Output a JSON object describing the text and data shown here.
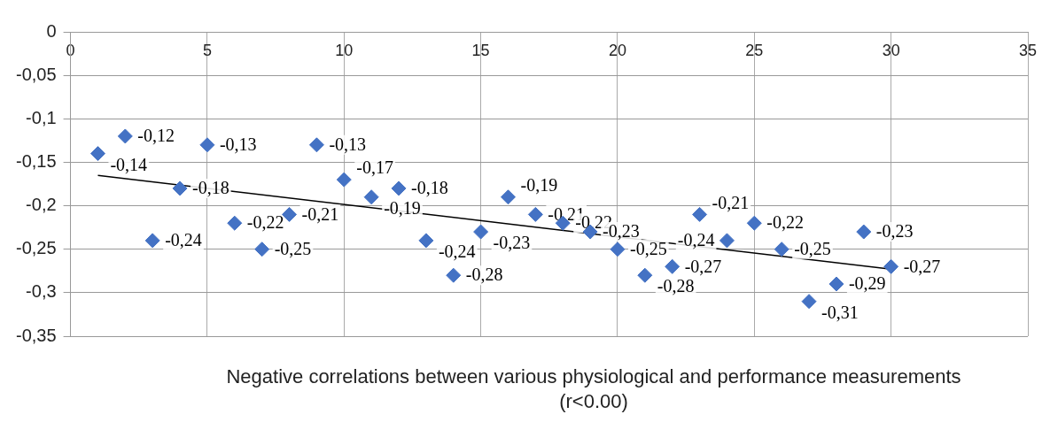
{
  "chart_data": {
    "type": "scatter",
    "xlabel": "Negative correlations between various physiological and performance measurements (r<0.00)",
    "xlim": [
      0,
      35
    ],
    "xticks": [
      0,
      5,
      10,
      15,
      20,
      25,
      30,
      35
    ],
    "ylim": [
      -0.35,
      0
    ],
    "yticks": [
      {
        "value": 0,
        "label": "0"
      },
      {
        "value": -0.05,
        "label": "-0,05"
      },
      {
        "value": -0.1,
        "label": "-0,1"
      },
      {
        "value": -0.15,
        "label": "-0,15"
      },
      {
        "value": -0.2,
        "label": "-0,2"
      },
      {
        "value": -0.25,
        "label": "-0,25"
      },
      {
        "value": -0.3,
        "label": "-0,3"
      },
      {
        "value": -0.35,
        "label": "-0,35"
      }
    ],
    "grid": true,
    "legend": false,
    "marker": "diamond",
    "series": [
      {
        "color": "#4472c4",
        "x": [
          1,
          2,
          3,
          4,
          5,
          6,
          7,
          8,
          9,
          10,
          11,
          12,
          13,
          14,
          15,
          16,
          17,
          18,
          19,
          20,
          21,
          22,
          23,
          24,
          25,
          26,
          27,
          28,
          29,
          30
        ],
        "values": [
          -0.14,
          -0.12,
          -0.24,
          -0.18,
          -0.13,
          -0.22,
          -0.25,
          -0.21,
          -0.13,
          -0.17,
          -0.19,
          -0.18,
          -0.24,
          -0.28,
          -0.23,
          -0.19,
          -0.21,
          -0.22,
          -0.23,
          -0.25,
          -0.28,
          -0.27,
          -0.21,
          -0.24,
          -0.22,
          -0.25,
          -0.31,
          -0.29,
          -0.23,
          -0.27
        ],
        "value_labels": [
          "-0,14",
          "-0,12",
          "-0,24",
          "-0,18",
          "-0,13",
          "-0,22",
          "-0,25",
          "-0,21",
          "-0,13",
          "-0,17",
          "-0,19",
          "-0,18",
          "-0,24",
          "-0,28",
          "-0,23",
          "-0,19",
          "-0,21",
          "-0,22",
          "-0,23",
          "-0,25",
          "-0,28",
          "-0,27",
          "-0,21",
          "-0,24",
          "-0,22",
          "-0,25",
          "-0,31",
          "-0,29",
          "-0,23",
          "-0,27"
        ]
      },
      {
        "type": "line",
        "color": "#000000",
        "x": [
          1,
          30
        ],
        "values": [
          -0.165,
          -0.273
        ],
        "marker": "none"
      }
    ]
  }
}
